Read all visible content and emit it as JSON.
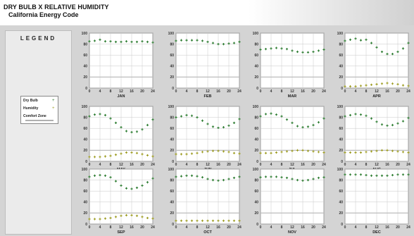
{
  "header": {
    "title": "DRY BULB  X  RELATIVE HUMIDITY",
    "subtitle": "California Energy Code"
  },
  "legend": {
    "title": "LEGEND",
    "items": [
      {
        "label": "Dry Bulb",
        "symbol": "+",
        "color": "#2e7d32"
      },
      {
        "label": "Humidity",
        "symbol": "+",
        "color": "#9e9d24"
      },
      {
        "label": "Comfort Zone",
        "symbol": "",
        "color": "#b0b0b0"
      }
    ]
  },
  "chart_data": {
    "type": "scatter",
    "x_ticks": [
      "0",
      "4",
      "8",
      "12",
      "16",
      "20",
      "24"
    ],
    "y_ticks": [
      "0",
      "20",
      "40",
      "60",
      "80",
      "100"
    ],
    "xlim": [
      0,
      24
    ],
    "ylim": [
      0,
      100
    ],
    "grid": true,
    "colors": {
      "dry_bulb": "#2e7d32",
      "humidity": "#9e9d24",
      "comfort": "#bdbdbd"
    },
    "months": [
      {
        "label": "JAN",
        "dry_bulb": [
          85,
          86,
          88,
          85,
          85,
          84,
          84,
          85,
          84,
          84,
          85,
          84,
          83
        ],
        "humidity": []
      },
      {
        "label": "FEB",
        "dry_bulb": [
          86,
          87,
          87,
          87,
          87,
          86,
          84,
          82,
          80,
          80,
          81,
          82,
          84
        ],
        "humidity": []
      },
      {
        "label": "MAR",
        "dry_bulb": [
          70,
          71,
          72,
          73,
          72,
          71,
          68,
          66,
          65,
          65,
          66,
          68,
          70
        ],
        "humidity": []
      },
      {
        "label": "APR",
        "dry_bulb": [
          86,
          88,
          90,
          87,
          88,
          82,
          74,
          66,
          62,
          62,
          66,
          72,
          82
        ],
        "humidity": [
          3,
          3,
          3,
          4,
          5,
          6,
          7,
          8,
          9,
          8,
          7,
          5,
          4
        ]
      },
      {
        "label": "MAY",
        "dry_bulb": [
          82,
          85,
          86,
          84,
          78,
          70,
          62,
          55,
          53,
          54,
          58,
          66,
          76
        ],
        "humidity": [
          8,
          8,
          8,
          9,
          10,
          12,
          14,
          16,
          16,
          15,
          13,
          11,
          9
        ]
      },
      {
        "label": "JUN",
        "dry_bulb": [
          80,
          82,
          84,
          83,
          80,
          74,
          68,
          63,
          61,
          62,
          65,
          70,
          77
        ],
        "humidity": [
          13,
          13,
          13,
          14,
          15,
          17,
          18,
          19,
          19,
          18,
          17,
          15,
          14
        ]
      },
      {
        "label": "JUL",
        "dry_bulb": [
          82,
          86,
          87,
          85,
          82,
          76,
          70,
          64,
          62,
          63,
          66,
          71,
          78
        ],
        "humidity": [
          15,
          15,
          15,
          16,
          17,
          18,
          19,
          20,
          20,
          19,
          18,
          17,
          16
        ]
      },
      {
        "label": "AUG",
        "dry_bulb": [
          82,
          84,
          86,
          85,
          83,
          78,
          72,
          67,
          65,
          66,
          69,
          73,
          79
        ],
        "humidity": [
          16,
          16,
          16,
          16,
          17,
          18,
          19,
          20,
          20,
          19,
          18,
          17,
          16
        ]
      },
      {
        "label": "SEP",
        "dry_bulb": [
          86,
          88,
          89,
          88,
          85,
          78,
          70,
          65,
          64,
          66,
          70,
          76,
          83
        ],
        "humidity": [
          9,
          9,
          9,
          10,
          11,
          13,
          15,
          16,
          16,
          15,
          13,
          11,
          10
        ]
      },
      {
        "label": "OCT",
        "dry_bulb": [
          86,
          87,
          88,
          88,
          87,
          85,
          82,
          80,
          79,
          80,
          82,
          84,
          86
        ],
        "humidity": [
          6,
          6,
          6,
          6,
          6,
          6,
          6,
          6,
          6,
          6,
          6,
          6,
          6
        ]
      },
      {
        "label": "NOV",
        "dry_bulb": [
          85,
          86,
          86,
          86,
          85,
          84,
          82,
          80,
          79,
          80,
          82,
          84,
          85
        ],
        "humidity": []
      },
      {
        "label": "DEC",
        "dry_bulb": [
          90,
          90,
          90,
          90,
          89,
          88,
          88,
          88,
          88,
          89,
          90,
          90,
          90
        ],
        "humidity": []
      }
    ]
  }
}
